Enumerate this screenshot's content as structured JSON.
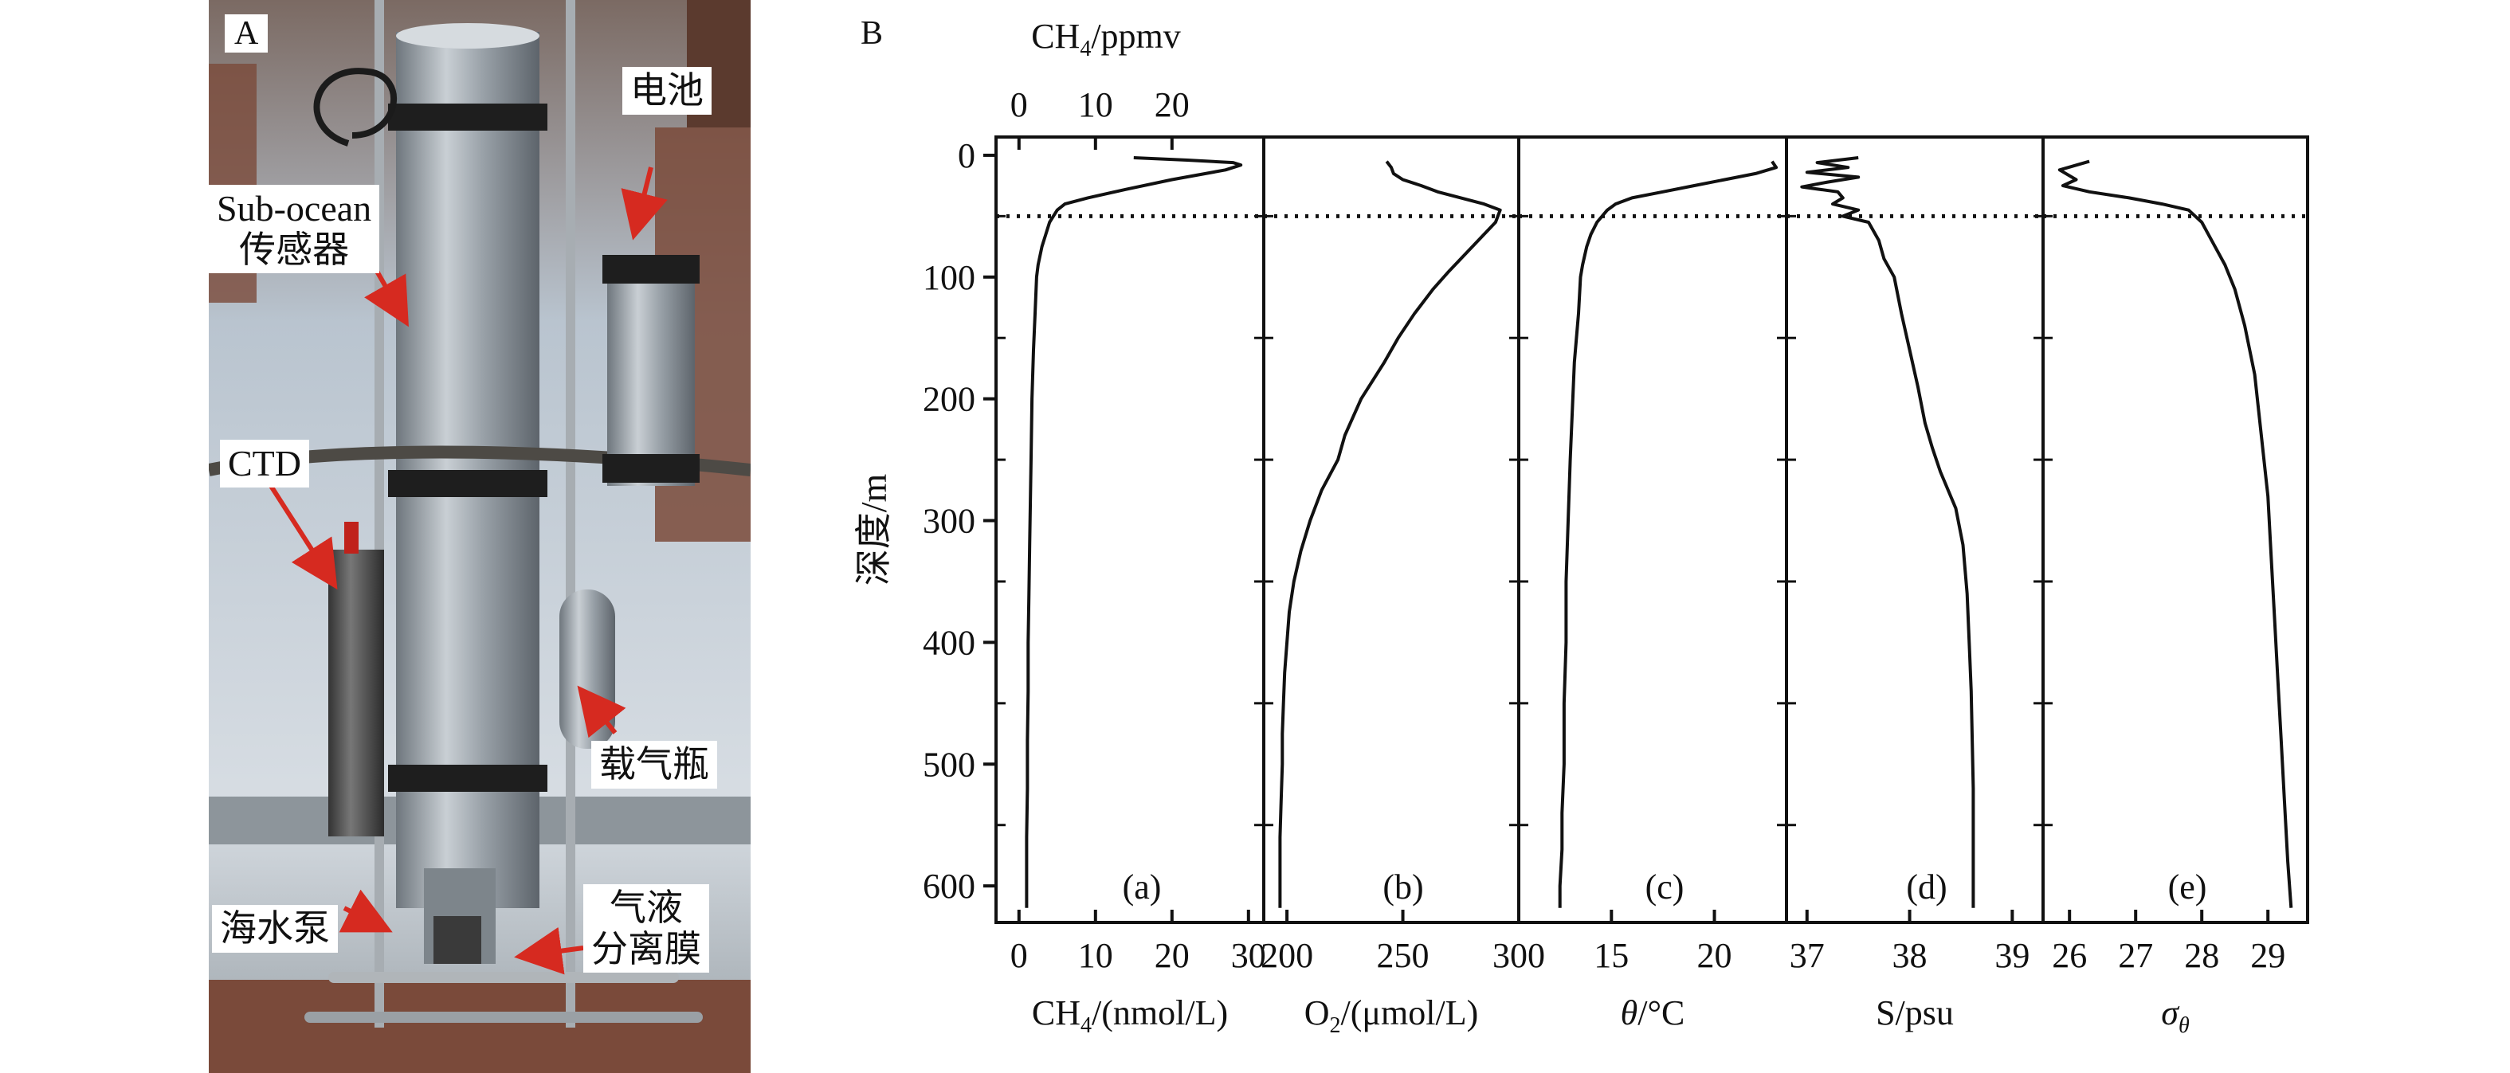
{
  "panel_a": {
    "letter": "A",
    "labels": {
      "battery": "电池",
      "sub_ocean_line1": "Sub-ocean",
      "sub_ocean_line2": "传感器",
      "ctd": "CTD",
      "gas_bottle": "载气瓶",
      "pump": "海水泵",
      "membrane_line1": "气液",
      "membrane_line2": "分离膜"
    },
    "colors": {
      "arrow": "#d62a20",
      "steel": "#8f969d",
      "sky": "#b9c4cf",
      "rust": "#7a4a3a"
    }
  },
  "panel_b": {
    "letter": "B",
    "y_axis_label": "深度/m"
  },
  "chart_data": {
    "type": "line",
    "shared_y": {
      "label": "深度/m",
      "lim": [
        -15,
        630
      ],
      "ticks": [
        0,
        100,
        200,
        300,
        400,
        500,
        600
      ],
      "inverted": true
    },
    "mixed_layer_depth": 50,
    "subplots": [
      {
        "id": "a",
        "tag": "(a)",
        "xlabel_parts": [
          "CH",
          "4",
          "/(nmol/L)"
        ],
        "xlim": [
          -3,
          32
        ],
        "ticks": [
          0,
          10,
          20,
          30
        ],
        "top_axis": {
          "label_parts": [
            "CH",
            "4",
            "/ppmv"
          ],
          "ticks": [
            0,
            10,
            20
          ],
          "factor": 1
        },
        "x": [
          15,
          22,
          28,
          29,
          27,
          20,
          14,
          9,
          6,
          5,
          4,
          3.5,
          3,
          2.5,
          2.3,
          2.1,
          1.9,
          1.7,
          1.6,
          1.5,
          1.4,
          1.3,
          1.2,
          1.2,
          1.1,
          1.1,
          1.0,
          1.0,
          1.0
        ],
        "y": [
          2,
          4,
          6,
          8,
          12,
          20,
          28,
          35,
          40,
          45,
          55,
          65,
          75,
          90,
          100,
          130,
          160,
          200,
          240,
          280,
          320,
          360,
          400,
          440,
          480,
          520,
          560,
          600,
          618
        ]
      },
      {
        "id": "b",
        "tag": "(b)",
        "xlabel_parts": [
          "O",
          "2",
          "/(μmol/L)"
        ],
        "xlim": [
          190,
          300
        ],
        "ticks": [
          200,
          250,
          300
        ],
        "x": [
          243,
          245,
          246,
          250,
          258,
          265,
          275,
          285,
          292,
          290,
          285,
          280,
          275,
          270,
          263,
          255,
          248,
          242,
          232,
          225,
          222,
          215,
          210,
          206,
          203,
          201,
          200,
          199,
          198.5,
          198,
          198,
          197.5,
          197,
          197,
          197
        ],
        "y": [
          5,
          10,
          15,
          20,
          25,
          30,
          35,
          40,
          45,
          55,
          65,
          75,
          85,
          95,
          110,
          130,
          150,
          170,
          200,
          230,
          250,
          275,
          300,
          325,
          350,
          375,
          400,
          425,
          450,
          475,
          500,
          530,
          560,
          600,
          618
        ]
      },
      {
        "id": "c",
        "tag": "(c)",
        "xlabel_parts": [
          "θ",
          "",
          "/°C"
        ],
        "xlabel_italic_first": true,
        "xlim": [
          10.5,
          23.5
        ],
        "ticks": [
          15,
          20
        ],
        "x": [
          22.8,
          23.0,
          22.0,
          20.5,
          19.0,
          17.5,
          16.0,
          15.2,
          14.8,
          14.3,
          14.0,
          13.8,
          13.6,
          13.5,
          13.4,
          13.2,
          13.1,
          13.0,
          12.9,
          12.8,
          12.8,
          12.7,
          12.7,
          12.6,
          12.6,
          12.5,
          12.5
        ],
        "y": [
          5,
          10,
          15,
          20,
          25,
          30,
          35,
          40,
          45,
          55,
          65,
          75,
          90,
          100,
          130,
          170,
          210,
          250,
          300,
          350,
          400,
          450,
          500,
          540,
          570,
          600,
          618
        ]
      },
      {
        "id": "d",
        "tag": "(d)",
        "xlabel_parts": [
          "S/psu",
          "",
          ""
        ],
        "xlim": [
          36.8,
          39.3
        ],
        "ticks": [
          37,
          38,
          39
        ],
        "x": [
          37.5,
          37.1,
          37.4,
          37.0,
          37.5,
          37.2,
          36.95,
          37.3,
          37.35,
          37.25,
          37.5,
          37.35,
          37.6,
          37.7,
          37.75,
          37.85,
          37.92,
          38.0,
          38.08,
          38.15,
          38.22,
          38.3,
          38.45,
          38.52,
          38.56,
          38.58,
          38.6,
          38.61,
          38.62,
          38.62,
          38.62
        ],
        "y": [
          2,
          6,
          10,
          14,
          18,
          22,
          26,
          30,
          35,
          40,
          45,
          50,
          55,
          70,
          85,
          100,
          130,
          160,
          190,
          220,
          240,
          260,
          290,
          320,
          360,
          400,
          440,
          480,
          520,
          580,
          618
        ]
      },
      {
        "id": "e",
        "tag": "(e)",
        "xlabel_parts": [
          "σ",
          "θ",
          ""
        ],
        "xlabel_italic_first": true,
        "xlim": [
          25.6,
          29.6
        ],
        "ticks": [
          26,
          27,
          28,
          29
        ],
        "x": [
          26.3,
          25.85,
          26.1,
          25.9,
          26.3,
          26.9,
          27.4,
          27.8,
          28.0,
          28.1,
          28.2,
          28.35,
          28.5,
          28.65,
          28.8,
          28.9,
          29.0,
          29.05,
          29.1,
          29.15,
          29.2,
          29.25,
          29.3,
          29.35
        ],
        "y": [
          5,
          12,
          20,
          25,
          30,
          35,
          40,
          45,
          55,
          65,
          75,
          90,
          110,
          140,
          180,
          230,
          280,
          330,
          380,
          430,
          480,
          530,
          580,
          618
        ]
      }
    ]
  }
}
